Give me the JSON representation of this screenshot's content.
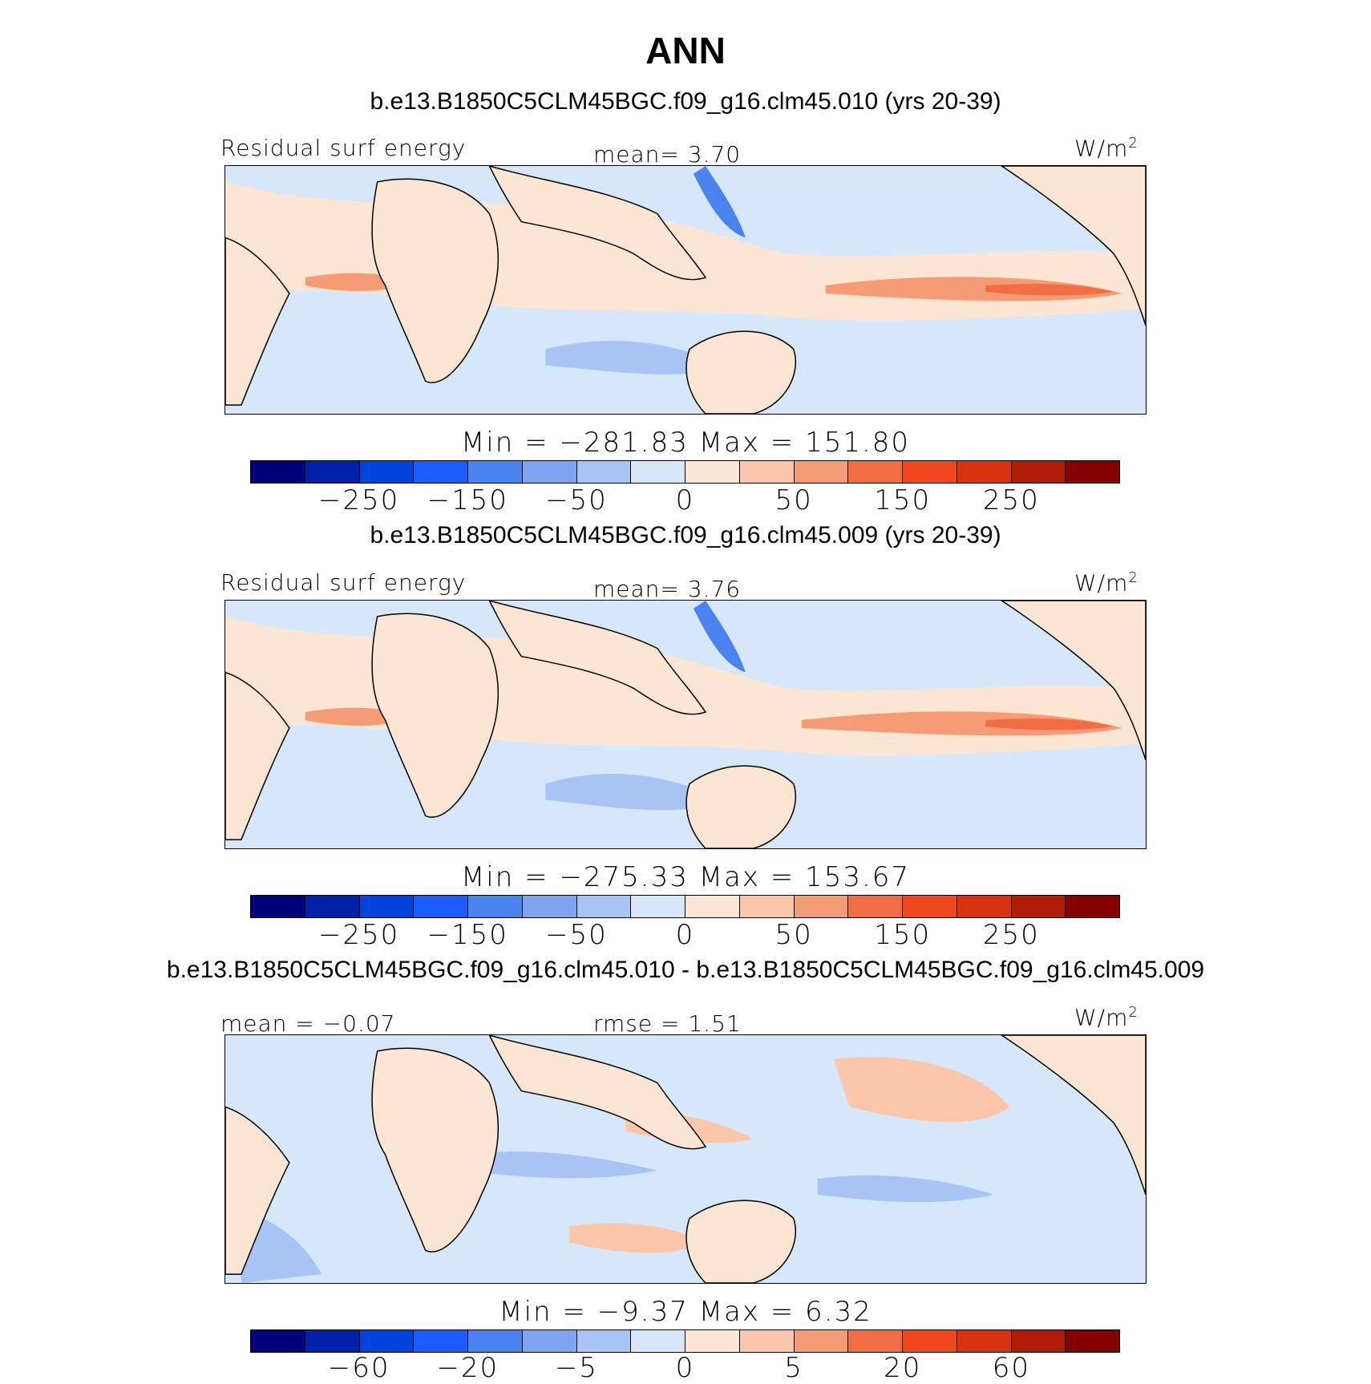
{
  "title": "ANN",
  "units": "W/m",
  "units_sup": "2",
  "colors": [
    "#00007a",
    "#0022aa",
    "#0044dd",
    "#1a5cff",
    "#4a82f0",
    "#7fa4f2",
    "#a8c4f5",
    "#d6e6fb",
    "#fde5d3",
    "#fbc6aa",
    "#f59c76",
    "#f26d44",
    "#f0471f",
    "#d8330f",
    "#b01c08",
    "#850000"
  ],
  "panels": [
    {
      "title": "b.e13.B1850C5CLM45BGC.f09_g16.clm45.010 (yrs 20-39)",
      "left_label": "Residual surf energy",
      "center_label": "mean=    3.70",
      "minmax": "Min  =  −281.83  Max  =  151.80",
      "ticks": [
        "−250",
        "−150",
        "−50",
        "0",
        "50",
        "150",
        "250"
      ],
      "chart_data": {
        "type": "heatmap",
        "variable": "Residual surf energy",
        "units": "W/m2",
        "mean": 3.7,
        "min": -281.83,
        "max": 151.8,
        "contour_levels": [
          -300,
          -250,
          -200,
          -150,
          -100,
          -50,
          -25,
          0,
          25,
          50,
          100,
          150,
          200,
          250,
          300
        ]
      }
    },
    {
      "title": "b.e13.B1850C5CLM45BGC.f09_g16.clm45.009 (yrs 20-39)",
      "left_label": "Residual surf energy",
      "center_label": "mean=    3.76",
      "minmax": "Min  =  −275.33  Max  =  153.67",
      "ticks": [
        "−250",
        "−150",
        "−50",
        "0",
        "50",
        "150",
        "250"
      ],
      "chart_data": {
        "type": "heatmap",
        "variable": "Residual surf energy",
        "units": "W/m2",
        "mean": 3.76,
        "min": -275.33,
        "max": 153.67,
        "contour_levels": [
          -300,
          -250,
          -200,
          -150,
          -100,
          -50,
          -25,
          0,
          25,
          50,
          100,
          150,
          200,
          250,
          300
        ]
      }
    },
    {
      "title": "b.e13.B1850C5CLM45BGC.f09_g16.clm45.010 - b.e13.B1850C5CLM45BGC.f09_g16.clm45.009",
      "left_label": "mean  =   −0.07",
      "center_label": "rmse  =    1.51",
      "minmax": "Min  =    −9.37  Max  =     6.32",
      "ticks": [
        "−60",
        "−20",
        "−5",
        "0",
        "5",
        "20",
        "60"
      ],
      "chart_data": {
        "type": "heatmap",
        "variable": "difference",
        "units": "W/m2",
        "mean": -0.07,
        "rmse": 1.51,
        "min": -9.37,
        "max": 6.32,
        "contour_levels": [
          -80,
          -60,
          -40,
          -20,
          -10,
          -5,
          -2,
          0,
          2,
          5,
          10,
          20,
          40,
          60,
          80
        ]
      }
    }
  ]
}
